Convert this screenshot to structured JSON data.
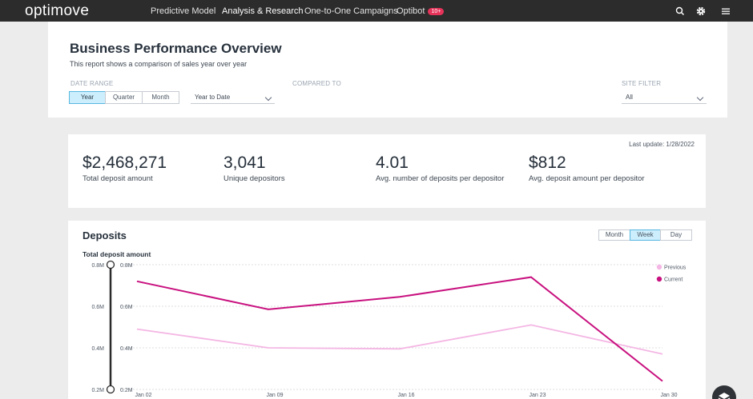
{
  "nav": {
    "logo": "optimove",
    "items": [
      {
        "label": "Predictive Model"
      },
      {
        "label": "Analysis & Research"
      },
      {
        "label": "One-to-One Campaigns"
      },
      {
        "label": "Optibot"
      }
    ],
    "optibot_badge": "10+",
    "icons": [
      "search-icon",
      "gear-icon",
      "menu-icon"
    ]
  },
  "header": {
    "title": "Business Performance Overview",
    "subtitle": "This report shows a comparison of sales year over year",
    "date_range_label": "DATE RANGE",
    "date_range_options": [
      "Year",
      "Quarter",
      "Month"
    ],
    "date_range_selected": "Year",
    "period_value": "Year to Date",
    "compared_to_label": "COMPARED TO",
    "site_filter_label": "SITE FILTER",
    "site_filter_value": "All"
  },
  "kpis": {
    "last_update": "Last update: 1/28/2022",
    "items": [
      {
        "value": "$2,468,271",
        "label": "Total deposit amount"
      },
      {
        "value": "3,041",
        "label": "Unique depositors"
      },
      {
        "value": "4.01",
        "label": "Avg. number of deposits per depositor"
      },
      {
        "value": "$812",
        "label": "Avg. deposit amount per depositor"
      }
    ]
  },
  "deposits": {
    "title": "Deposits",
    "granularity": [
      "Month",
      "Week",
      "Day"
    ],
    "granularity_selected": "Week",
    "slider_ticks": [
      "0.8M",
      "0.6M",
      "0.4M",
      "0.2M"
    ]
  },
  "chart_data": {
    "type": "line",
    "title": "Total deposit amount",
    "x": [
      "Jan 02",
      "Jan 09",
      "Jan 16",
      "Jan 23",
      "Jan 30"
    ],
    "y_ticks": [
      "0.8M",
      "0.6M",
      "0.4M",
      "0.2M"
    ],
    "ylim": [
      0.2,
      0.8
    ],
    "series": [
      {
        "name": "Previous",
        "color": "#f4b6e4",
        "values": [
          0.49,
          0.4,
          0.395,
          0.51,
          0.37
        ]
      },
      {
        "name": "Current",
        "color": "#c8117f",
        "values": [
          0.72,
          0.585,
          0.645,
          0.74,
          0.24
        ]
      }
    ],
    "legend_position": "top-right",
    "grid": true
  }
}
